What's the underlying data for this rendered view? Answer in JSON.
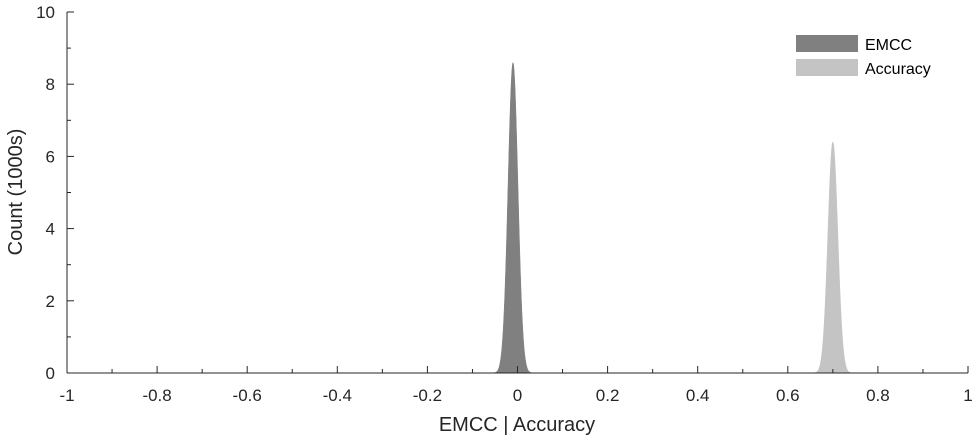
{
  "chart_data": {
    "type": "histogram",
    "xlabel": "EMCC | Accuracy",
    "ylabel": "Count (1000s)",
    "xlim": [
      -1,
      1
    ],
    "ylim": [
      0,
      10
    ],
    "xticks": [
      "-1",
      "-0.8",
      "-0.6",
      "-0.4",
      "-0.2",
      "0",
      "0.2",
      "0.4",
      "0.6",
      "0.8",
      "1"
    ],
    "yticks": [
      "0",
      "2",
      "4",
      "6",
      "8",
      "10"
    ],
    "legend_position": "top-right",
    "grid": false,
    "series": [
      {
        "name": "EMCC",
        "color": "#808080",
        "center": -0.01,
        "spread": 0.011,
        "peak": 8.6
      },
      {
        "name": "Accuracy",
        "color": "#c4c4c4",
        "center": 0.7,
        "spread": 0.011,
        "peak": 6.4
      }
    ]
  }
}
